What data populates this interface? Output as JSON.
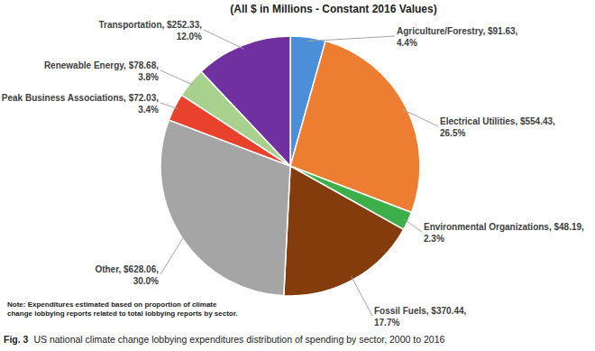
{
  "chart_data": {
    "type": "pie",
    "title": "(All $ in Millions - Constant 2016 Values)",
    "categories": [
      "Agriculture/Forestry",
      "Electrical Utilities",
      "Environmental Organizations",
      "Fossil Fuels",
      "Other",
      "Peak Business Associations",
      "Renewable Energy",
      "Transportation"
    ],
    "values": [
      91.63,
      554.43,
      48.19,
      370.44,
      628.06,
      72.03,
      78.68,
      252.33
    ],
    "value_labels": [
      "$91.63",
      "$554.43",
      "$48.19",
      "$370.44",
      "$628.06",
      "$72.03",
      "$78.68",
      "$252.33"
    ],
    "percent_labels": [
      "4.4%",
      "26.5%",
      "2.3%",
      "17.7%",
      "30.0%",
      "3.4%",
      "3.8%",
      "12.0%"
    ],
    "colors": [
      "#4a8fd8",
      "#ed7d31",
      "#3cae4a",
      "#843c0c",
      "#a5a5a5",
      "#e8412c",
      "#a9d18e",
      "#7030a0"
    ],
    "data_labels": true,
    "annotations": [
      "Note: Expenditures estimated based on proportion of climate",
      "change lobbying reports related to total lobbying reports by sector."
    ],
    "caption_label": "Fig. 3",
    "caption": "US national climate change lobbying expenditures distribution of spending by sector, 2000 to 2016"
  }
}
